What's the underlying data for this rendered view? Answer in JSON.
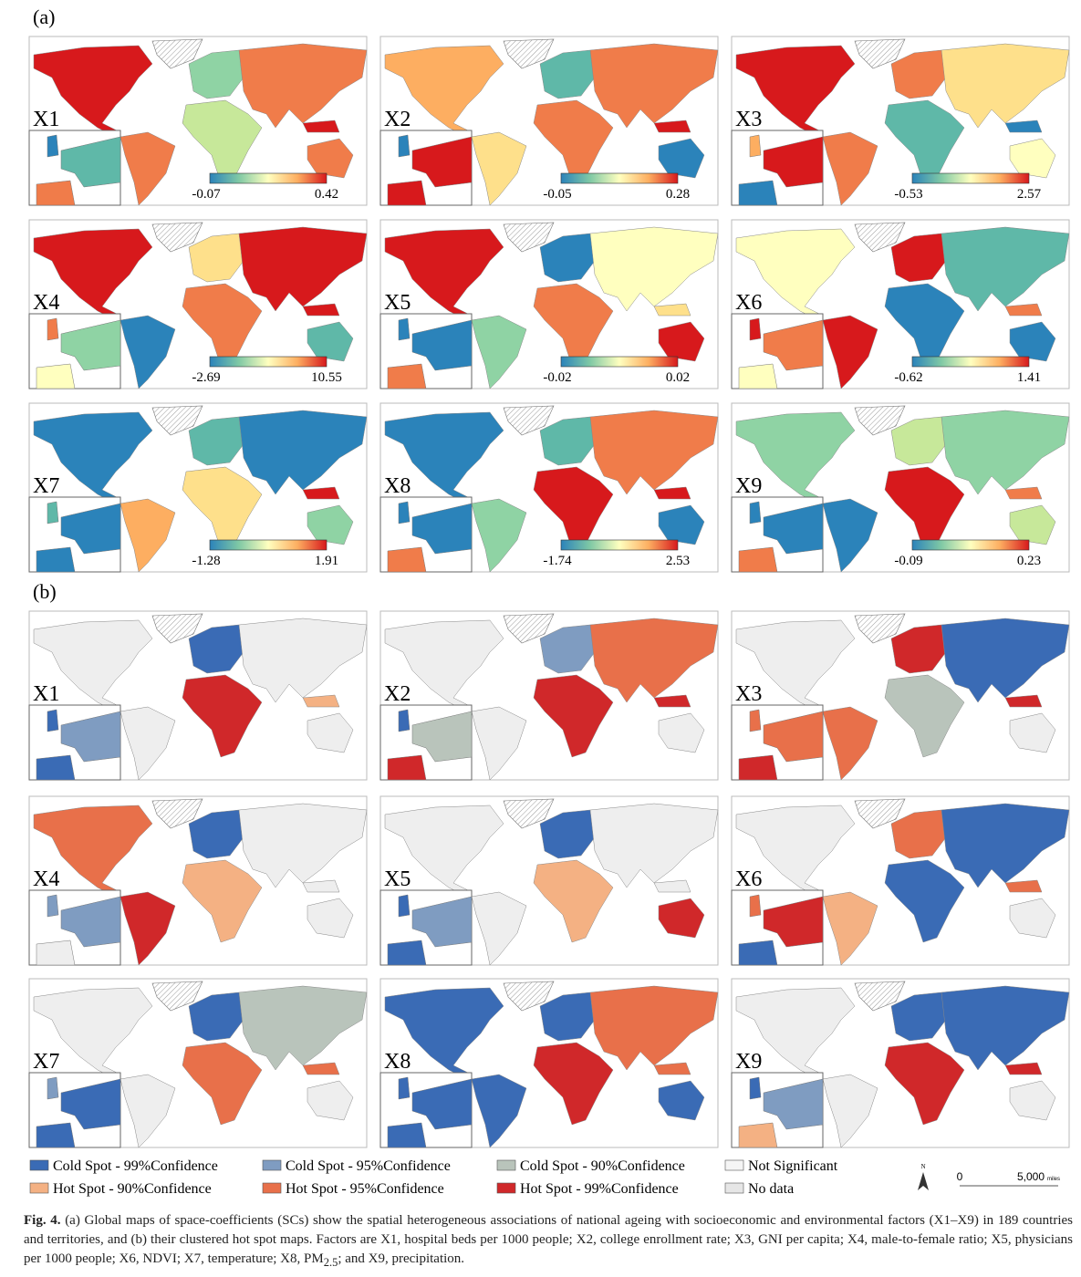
{
  "panel_a": {
    "label": "(a)",
    "maps": [
      {
        "label": "X1",
        "min": "-0.07",
        "max": "0.42"
      },
      {
        "label": "X2",
        "min": "-0.05",
        "max": "0.28"
      },
      {
        "label": "X3",
        "min": "-0.53",
        "max": "2.57"
      },
      {
        "label": "X4",
        "min": "-2.69",
        "max": "10.55"
      },
      {
        "label": "X5",
        "min": "-0.02",
        "max": "0.02"
      },
      {
        "label": "X6",
        "min": "-0.62",
        "max": "1.41"
      },
      {
        "label": "X7",
        "min": "-1.28",
        "max": "1.91"
      },
      {
        "label": "X8",
        "min": "-1.74",
        "max": "2.53"
      },
      {
        "label": "X9",
        "min": "-0.09",
        "max": "0.23"
      }
    ]
  },
  "panel_b": {
    "label": "(b)",
    "maps": [
      {
        "label": "X1"
      },
      {
        "label": "X2"
      },
      {
        "label": "X3"
      },
      {
        "label": "X4"
      },
      {
        "label": "X5"
      },
      {
        "label": "X6"
      },
      {
        "label": "X7"
      },
      {
        "label": "X8"
      },
      {
        "label": "X9"
      }
    ]
  },
  "legend": {
    "items": [
      {
        "name": "Cold Spot - 99%Confidence",
        "color": "#3a6bb5"
      },
      {
        "name": "Cold Spot - 95%Confidence",
        "color": "#7f9cc1"
      },
      {
        "name": "Cold Spot - 90%Confidence",
        "color": "#b9c4bb"
      },
      {
        "name": "Not Significant",
        "color": "#f5f5f5"
      },
      {
        "name": "Hot Spot - 90%Confidence",
        "color": "#f4b183"
      },
      {
        "name": "Hot Spot - 95%Confidence",
        "color": "#e8704a"
      },
      {
        "name": "Hot Spot - 99%Confidence",
        "color": "#d0282a"
      },
      {
        "name": "No data",
        "color": "#e6e6e6"
      }
    ]
  },
  "scale_bar": {
    "north": "N",
    "start": "0",
    "end": "5,000",
    "unit": "miles"
  },
  "caption": {
    "label": "Fig. 4.",
    "text": " (a) Global maps of space-coefficients (SCs) show the spatial heterogeneous associations of national ageing with socioeconomic and environmental factors (X1–X9) in 189 countries and territories, and (b) their clustered hot spot maps. Factors are X1, hospital beds per 1000 people; X2, college enrollment rate; X3, GNI per capita; X4, male-to-female ratio; X5, physicians per 1000 people; X6, NDVI; X7, temperature; X8, PM",
    "sub": "2.5",
    "rest": "; and X9, precipitation."
  }
}
